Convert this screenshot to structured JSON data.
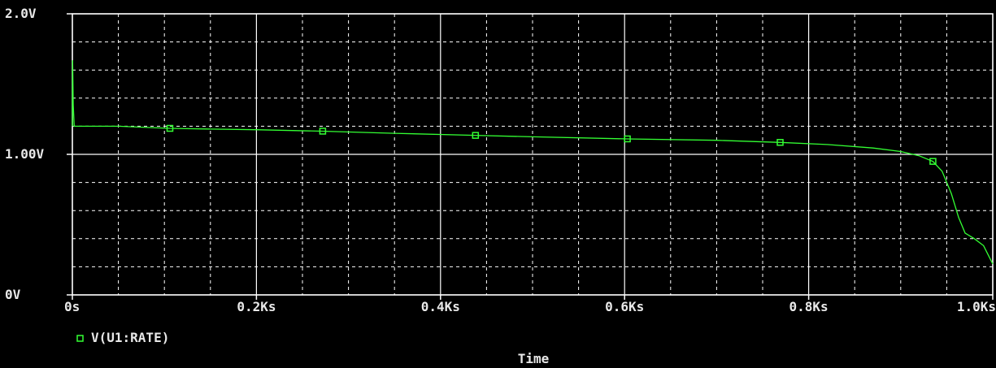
{
  "chart_data": {
    "type": "line",
    "title": "",
    "xlabel": "Time",
    "ylabel": "",
    "xlim": [
      0,
      1000
    ],
    "ylim": [
      0,
      2
    ],
    "x_ticks": [
      {
        "value": 0,
        "label": "0s"
      },
      {
        "value": 200,
        "label": "0.2Ks"
      },
      {
        "value": 400,
        "label": "0.4Ks"
      },
      {
        "value": 600,
        "label": "0.6Ks"
      },
      {
        "value": 800,
        "label": "0.8Ks"
      },
      {
        "value": 1000,
        "label": "1.0Ks"
      }
    ],
    "y_ticks": [
      {
        "value": 0,
        "label": "0V"
      },
      {
        "value": 1,
        "label": "1.00V"
      },
      {
        "value": 2,
        "label": "2.0V"
      }
    ],
    "grid": true,
    "legend_position": "bottom-left",
    "colors": {
      "background": "#000000",
      "grid": "#ffffff",
      "series": "#33ff33",
      "text": "#e8e8e8"
    },
    "series": [
      {
        "name": "V(U1:RATE)",
        "marker": "square",
        "markers_at": [
          106,
          272,
          438,
          603,
          769,
          935
        ],
        "x": [
          0,
          0.3,
          1,
          2,
          10,
          50,
          106,
          150,
          200,
          272,
          350,
          438,
          500,
          603,
          700,
          769,
          820,
          870,
          900,
          920,
          935,
          945,
          955,
          963,
          970,
          980,
          990,
          1000
        ],
        "y": [
          1.2,
          1.67,
          1.35,
          1.2,
          1.2,
          1.2,
          1.185,
          1.18,
          1.175,
          1.165,
          1.15,
          1.135,
          1.125,
          1.11,
          1.1,
          1.085,
          1.07,
          1.045,
          1.02,
          0.99,
          0.95,
          0.88,
          0.72,
          0.55,
          0.44,
          0.4,
          0.35,
          0.22
        ]
      }
    ]
  }
}
